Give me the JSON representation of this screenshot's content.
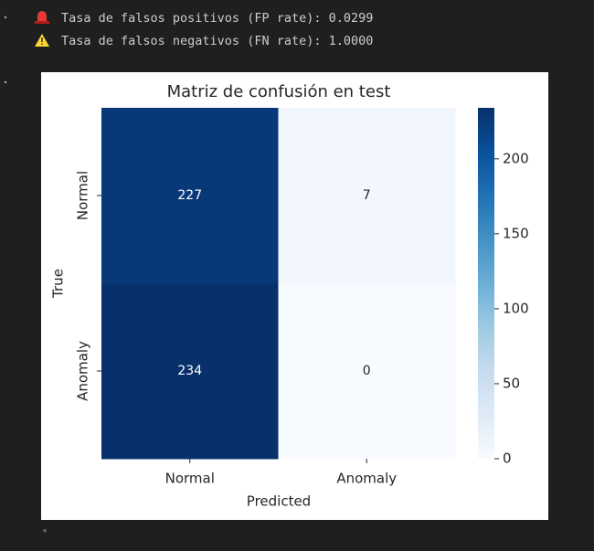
{
  "output_lines": [
    "Tasa de falsos positivos (FP rate): 0.0299",
    "Tasa de falsos negativos (FN rate): 1.0000"
  ],
  "chart_data": {
    "type": "heatmap",
    "title": "Matriz de confusión en test",
    "x_label": "Predicted",
    "y_label": "True",
    "x_categories": [
      "Normal",
      "Anomaly"
    ],
    "y_categories": [
      "Normal",
      "Anomaly"
    ],
    "z": [
      [
        227,
        7
      ],
      [
        234,
        0
      ]
    ],
    "cmap": "Blues",
    "clim": [
      0,
      234
    ],
    "cticks": [
      0,
      50,
      100,
      150,
      200
    ]
  }
}
